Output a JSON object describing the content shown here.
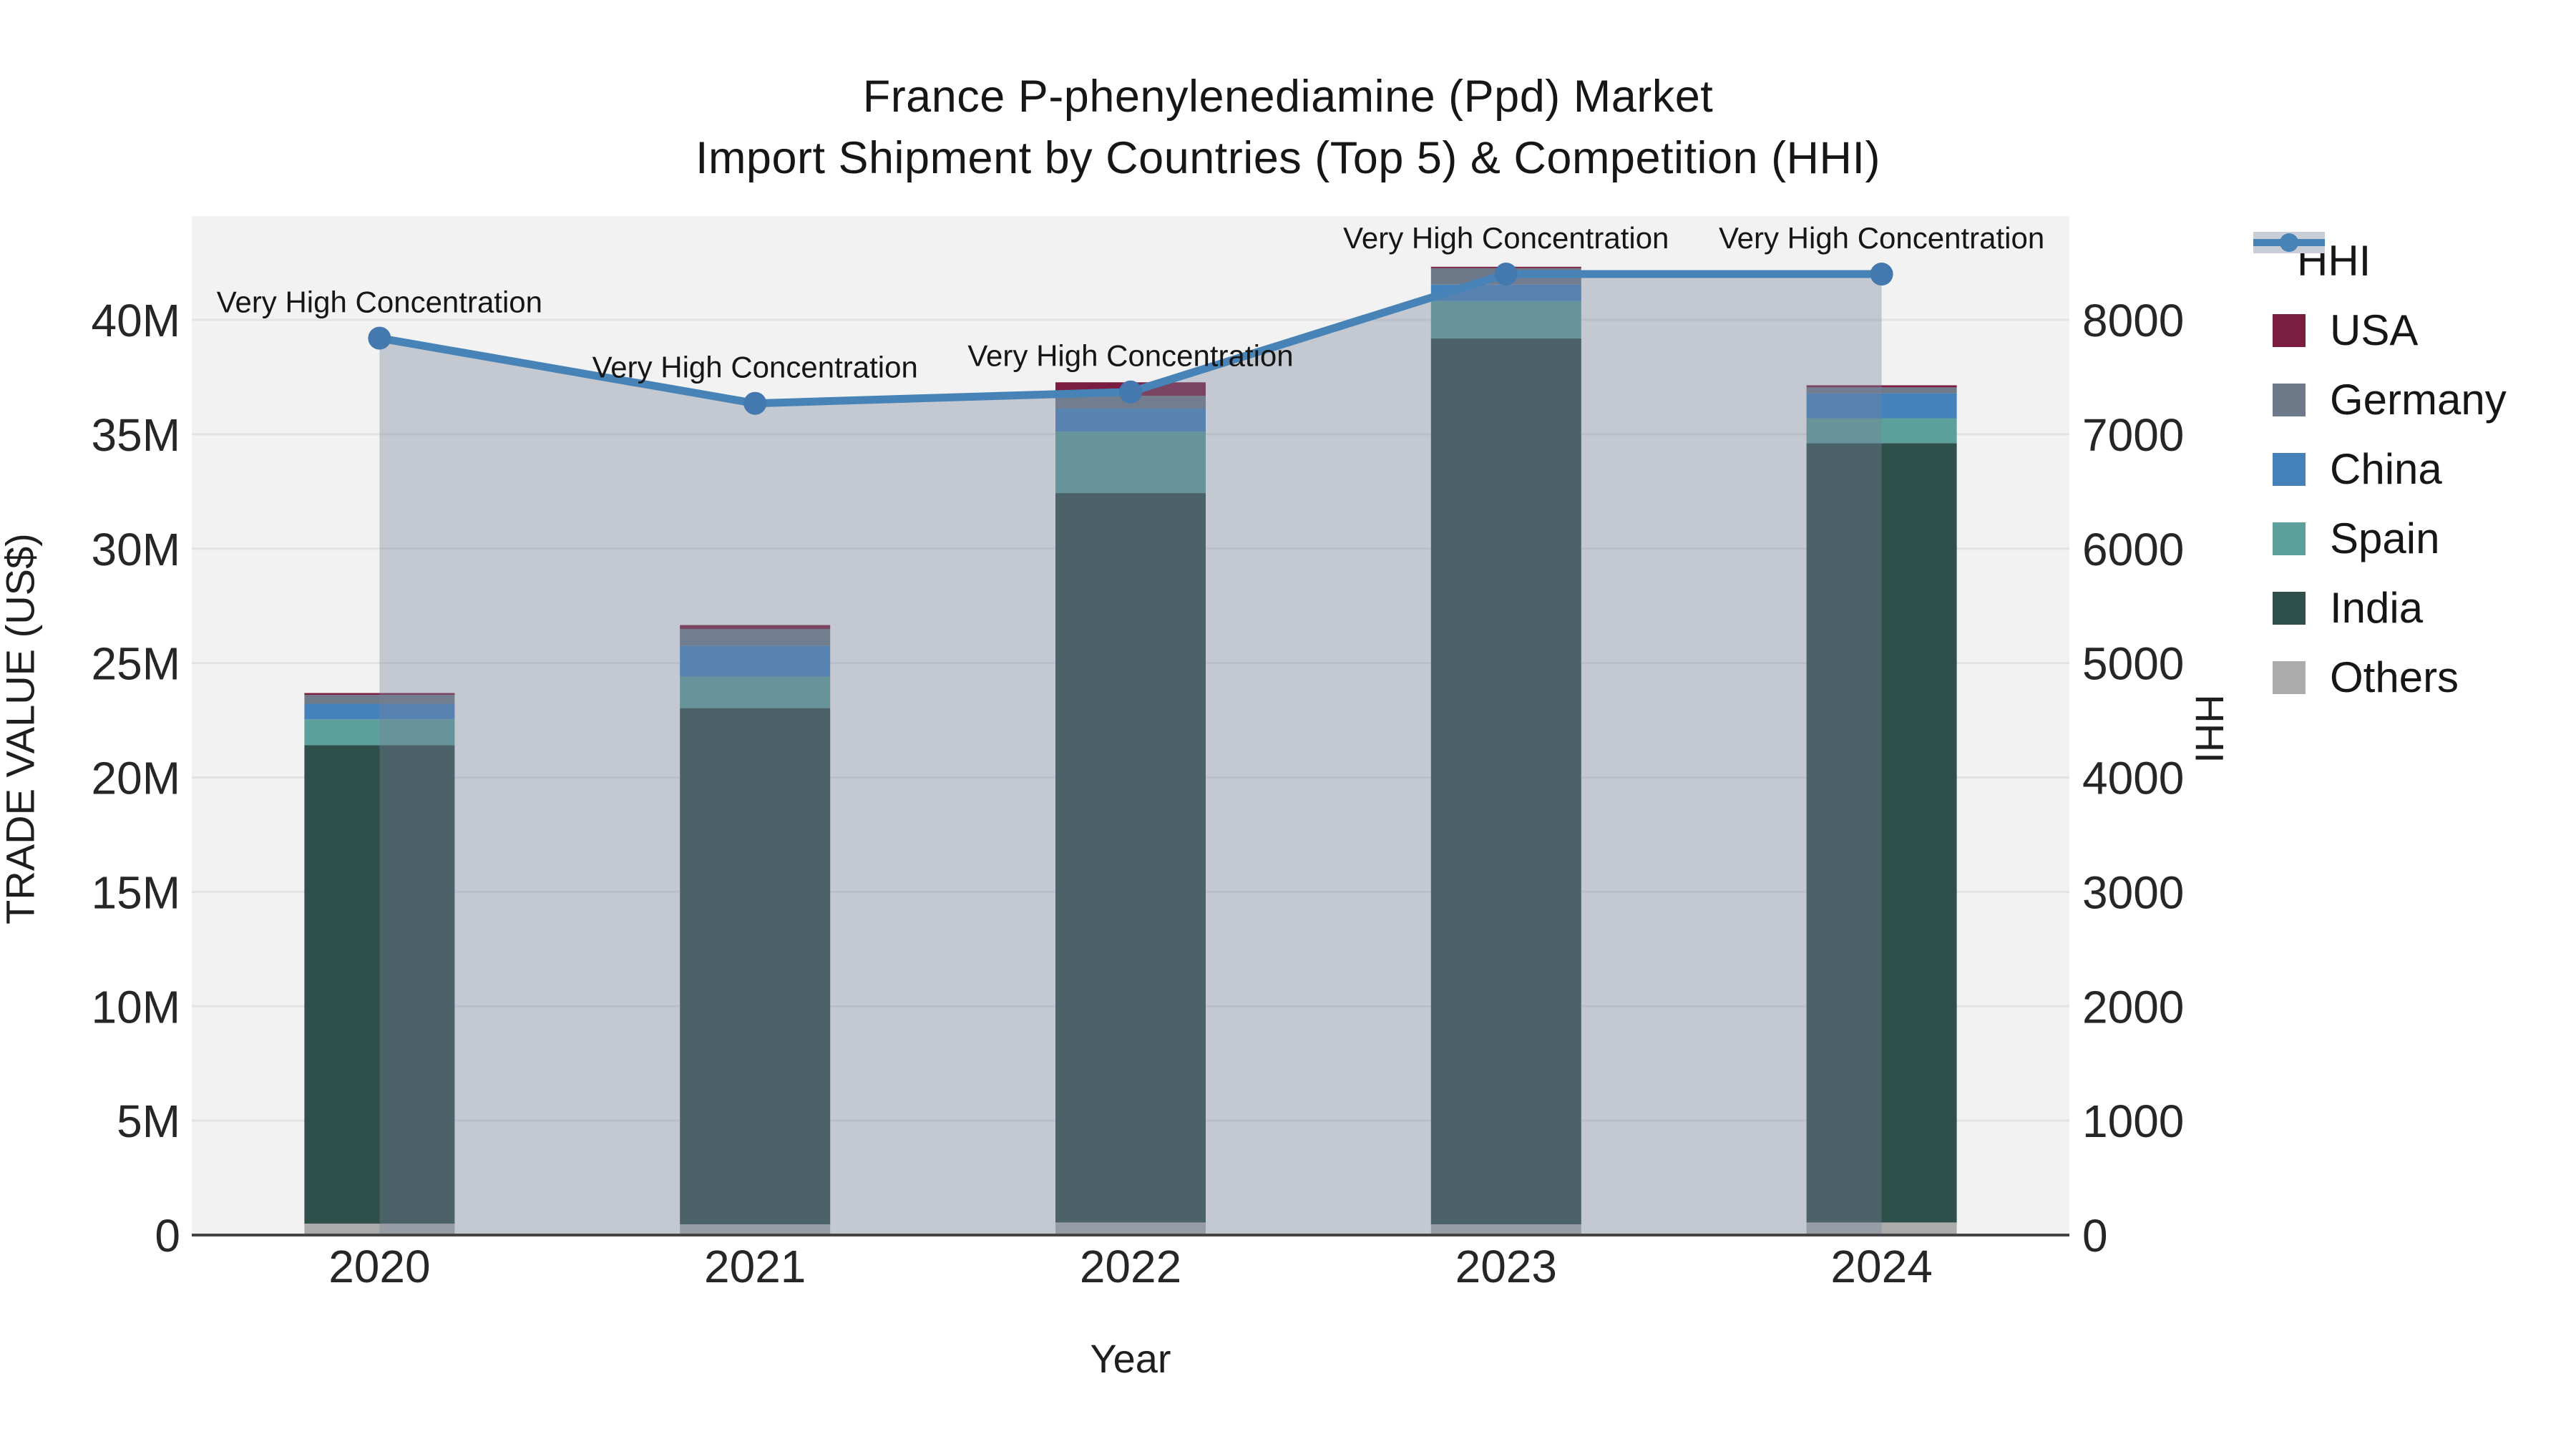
{
  "chart_data": {
    "type": "bar+line",
    "title_line1": "France P-phenylenediamine (Ppd) Market",
    "title_line2": "Import Shipment by Countries (Top 5) & Competition (HHI)",
    "xlabel": "Year",
    "ylabel": "TRADE VALUE (US$)",
    "y2label": "HHI",
    "categories": [
      "2020",
      "2021",
      "2022",
      "2023",
      "2024"
    ],
    "bar_unit": "million US$",
    "stack_order_bottom_to_top": [
      "Others",
      "India",
      "Spain",
      "China",
      "Germany",
      "USA"
    ],
    "series": [
      {
        "name": "Others",
        "color": "#ABABAB",
        "values": [
          0.5,
          0.47,
          0.55,
          0.47,
          0.55
        ]
      },
      {
        "name": "India",
        "color": "#2F4F4A",
        "values": [
          20.91,
          22.56,
          31.88,
          38.72,
          34.06
        ]
      },
      {
        "name": "Spain",
        "color": "#5C9F9B",
        "values": [
          1.13,
          1.38,
          2.69,
          1.63,
          1.09
        ]
      },
      {
        "name": "China",
        "color": "#4582BC",
        "values": [
          0.68,
          1.35,
          1.0,
          0.72,
          1.09
        ]
      },
      {
        "name": "Germany",
        "color": "#6E7A89",
        "values": [
          0.39,
          0.73,
          0.56,
          0.72,
          0.26
        ]
      },
      {
        "name": "USA",
        "color": "#7B1D40",
        "values": [
          0.08,
          0.17,
          0.59,
          0.06,
          0.09
        ]
      }
    ],
    "bar_totals_millions": [
      23.69,
      26.66,
      37.27,
      42.32,
      37.14
    ],
    "line_series": {
      "name": "HHI",
      "color": "#4783B6",
      "marker_color": "#4379AE",
      "area_fill_color": "rgba(120,132,155,0.38)",
      "values": [
        7840,
        7270,
        7370,
        8400,
        8400
      ]
    },
    "annotations": [
      {
        "category": "2020",
        "text": "Very High Concentration"
      },
      {
        "category": "2021",
        "text": "Very High Concentration"
      },
      {
        "category": "2022",
        "text": "Very High Concentration"
      },
      {
        "category": "2023",
        "text": "Very High Concentration"
      },
      {
        "category": "2024",
        "text": "Very High Concentration"
      }
    ],
    "y_ticks": [
      "0",
      "5M",
      "10M",
      "15M",
      "20M",
      "25M",
      "30M",
      "35M",
      "40M"
    ],
    "y2_ticks": [
      "0",
      "1000",
      "2000",
      "3000",
      "4000",
      "5000",
      "6000",
      "7000",
      "8000"
    ],
    "ylim_millions": [
      0,
      44.5
    ],
    "y2lim": [
      0,
      8900
    ],
    "grid": true,
    "legend_position": "right",
    "legend": [
      {
        "label": "HHI",
        "color": "#4783B6",
        "type": "line"
      },
      {
        "label": "USA",
        "color": "#7B1D40",
        "type": "square"
      },
      {
        "label": "Germany",
        "color": "#6E7A89",
        "type": "square"
      },
      {
        "label": "China",
        "color": "#4582BC",
        "type": "square"
      },
      {
        "label": "Spain",
        "color": "#5C9F9B",
        "type": "square"
      },
      {
        "label": "India",
        "color": "#2F4F4A",
        "type": "square"
      },
      {
        "label": "Others",
        "color": "#ABABAB",
        "type": "square"
      }
    ],
    "colors": {
      "plot_bg": "#F2F2F2",
      "grid": "#E3E3E4",
      "axis_line": "#444444",
      "text": "#262626",
      "title_text": "#161616"
    }
  }
}
